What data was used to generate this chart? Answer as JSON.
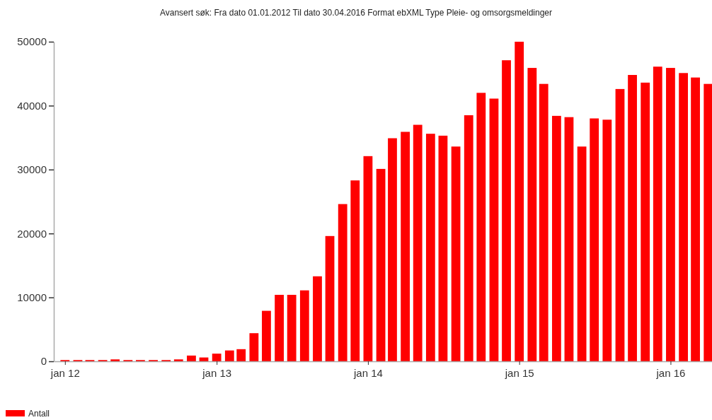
{
  "chart_data": {
    "type": "bar",
    "title": "Avansert søk:  Fra dato 01.01.2012 Til dato 30.04.2016 Format ebXML Type Pleie- og omsorgsmeldinger",
    "x": [
      "2012-01",
      "2012-02",
      "2012-03",
      "2012-04",
      "2012-05",
      "2012-06",
      "2012-07",
      "2012-08",
      "2012-09",
      "2012-10",
      "2012-11",
      "2012-12",
      "2013-01",
      "2013-02",
      "2013-03",
      "2013-04",
      "2013-05",
      "2013-06",
      "2013-07",
      "2013-08",
      "2013-09",
      "2013-10",
      "2013-11",
      "2013-12",
      "2014-01",
      "2014-02",
      "2014-03",
      "2014-04",
      "2014-05",
      "2014-06",
      "2014-07",
      "2014-08",
      "2014-09",
      "2014-10",
      "2014-11",
      "2014-12",
      "2015-01",
      "2015-02",
      "2015-03",
      "2015-04",
      "2015-05",
      "2015-06",
      "2015-07",
      "2015-08",
      "2015-09",
      "2015-10",
      "2015-11",
      "2015-12",
      "2016-01",
      "2016-02",
      "2016-03",
      "2016-04"
    ],
    "series": [
      {
        "name": "Antall",
        "color": "#ff0000",
        "values": [
          200,
          200,
          200,
          200,
          300,
          200,
          200,
          200,
          200,
          300,
          900,
          600,
          1200,
          1700,
          1900,
          4400,
          7900,
          10400,
          10400,
          11100,
          13300,
          19600,
          24600,
          28300,
          32100,
          30100,
          34900,
          35900,
          37000,
          35600,
          35300,
          33600,
          38500,
          42000,
          41100,
          47100,
          50000,
          45900,
          43400,
          38400,
          38200,
          33600,
          38000,
          37800,
          42600,
          44800,
          43600,
          46100,
          45900,
          45100,
          44400,
          43400
        ]
      }
    ],
    "xlim": [
      "2011-12-05",
      "2016-04-10"
    ],
    "xticks": [
      {
        "value": "2012-01",
        "label": "jan 12"
      },
      {
        "value": "2013-01",
        "label": "jan 13"
      },
      {
        "value": "2014-01",
        "label": "jan 14"
      },
      {
        "value": "2015-01",
        "label": "jan 15"
      },
      {
        "value": "2016-01",
        "label": "jan 16"
      }
    ],
    "ylim": [
      0,
      50000
    ],
    "yticks": [
      0,
      10000,
      20000,
      30000,
      40000,
      50000
    ],
    "grid": false,
    "legend": "bottom left"
  }
}
